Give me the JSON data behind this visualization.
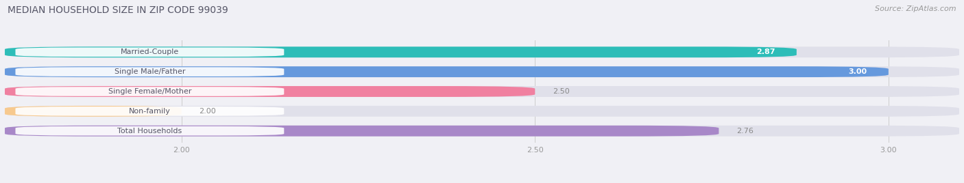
{
  "title": "MEDIAN HOUSEHOLD SIZE IN ZIP CODE 99039",
  "source": "Source: ZipAtlas.com",
  "categories": [
    "Married-Couple",
    "Single Male/Father",
    "Single Female/Mother",
    "Non-family",
    "Total Households"
  ],
  "values": [
    2.87,
    3.0,
    2.5,
    2.0,
    2.76
  ],
  "bar_colors": [
    "#2dbdb8",
    "#6699dd",
    "#f080a0",
    "#f7c98e",
    "#a888c8"
  ],
  "xlim_min": 1.75,
  "xlim_max": 3.1,
  "xticks": [
    2.0,
    2.5,
    3.0
  ],
  "background_color": "#f0f0f5",
  "bar_bg_color": "#e0e0ea",
  "label_bg_color": "#ffffff",
  "title_color": "#555566",
  "source_color": "#999999",
  "label_text_color": "#555566",
  "value_color_inside": "#ffffff",
  "value_color_outside": "#888888",
  "title_fontsize": 10,
  "source_fontsize": 8,
  "label_fontsize": 8,
  "value_fontsize": 8,
  "bar_height": 0.55,
  "bar_gap": 0.45
}
